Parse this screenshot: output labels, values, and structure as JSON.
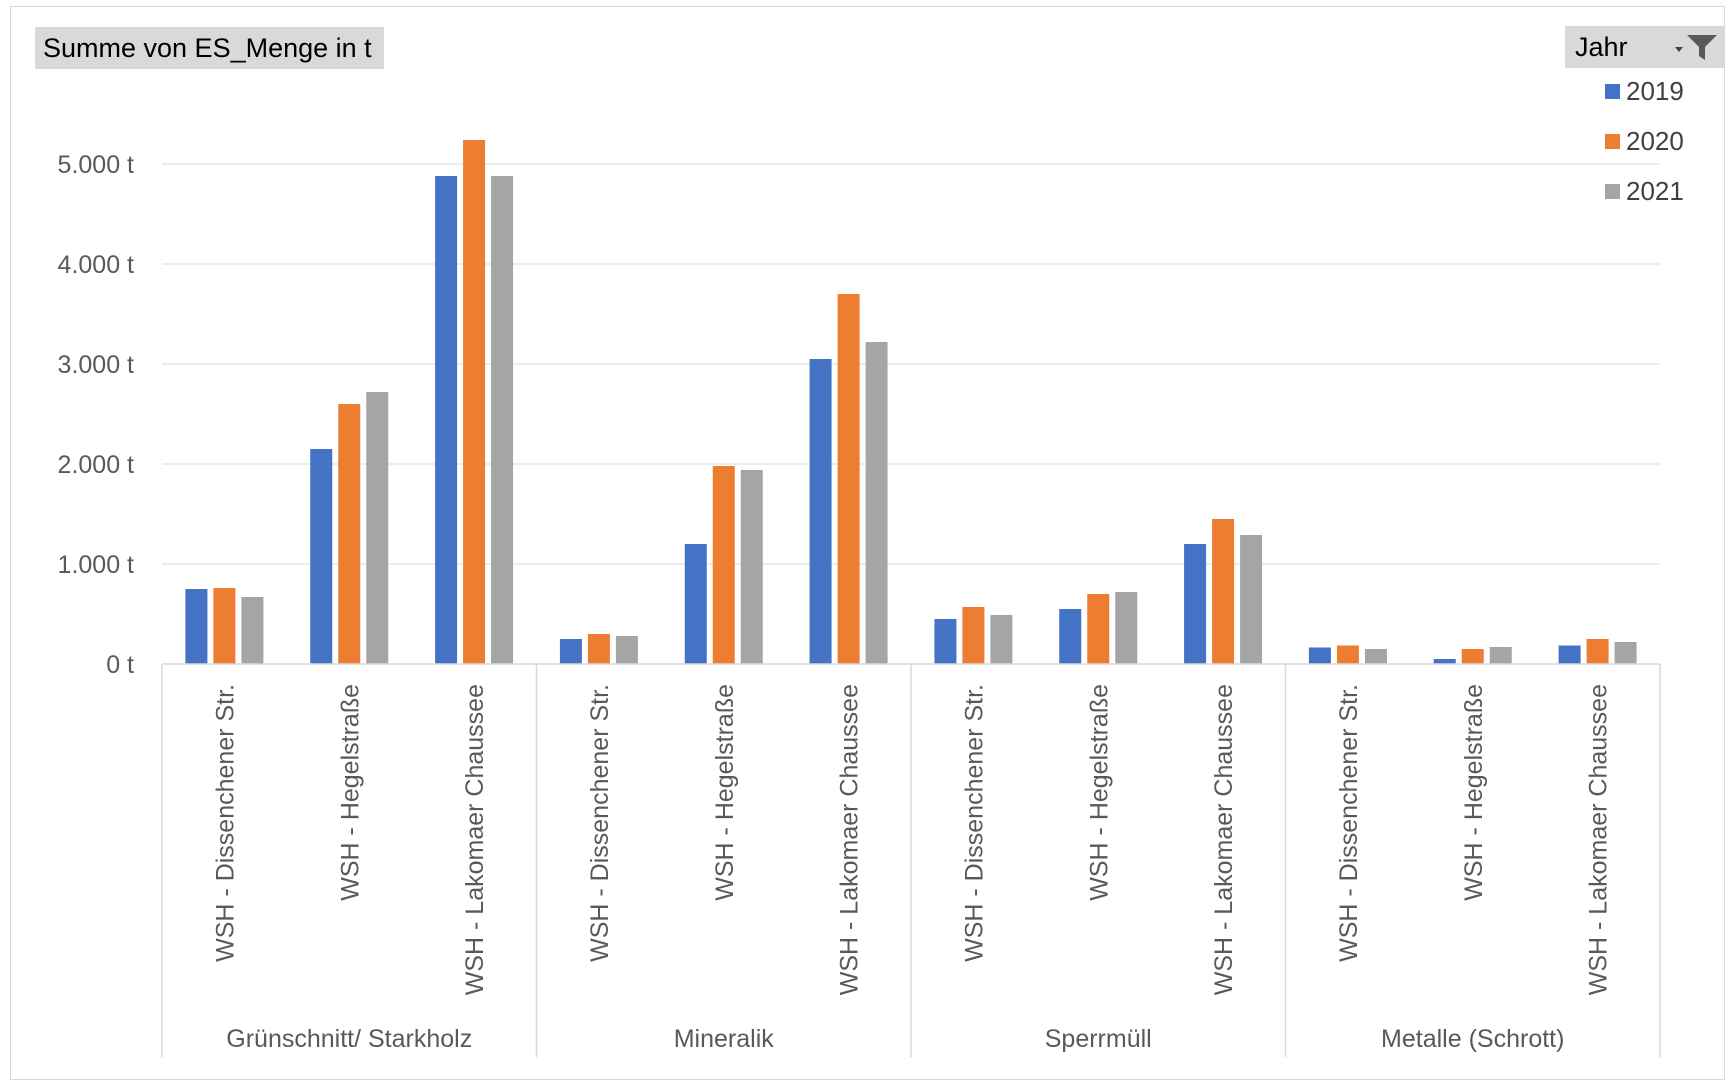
{
  "value_field": {
    "label": "Summe von ES_Menge in t"
  },
  "series_field": {
    "label": "Jahr",
    "icon": "filter-dropdown-icon"
  },
  "chart_data": {
    "type": "bar",
    "title": "",
    "xlabel": "",
    "ylabel": "",
    "ylim": [
      0,
      5000
    ],
    "y_ticks": [
      0,
      1000,
      2000,
      3000,
      4000,
      5000
    ],
    "y_tick_labels": [
      "0 t",
      "1.000 t",
      "2.000 t",
      "3.000 t",
      "4.000 t",
      "5.000 t"
    ],
    "grid": true,
    "legend_position": "top-right",
    "groups": [
      {
        "name": "Grünschnitt/ Starkholz",
        "categories": [
          "WSH - Dissenchener Str.",
          "WSH - Hegelstraße",
          "WSH - Lakomaer Chaussee"
        ]
      },
      {
        "name": "Mineralik",
        "categories": [
          "WSH - Dissenchener Str.",
          "WSH - Hegelstraße",
          "WSH - Lakomaer Chaussee"
        ]
      },
      {
        "name": "Sperrmüll",
        "categories": [
          "WSH - Dissenchener Str.",
          "WSH - Hegelstraße",
          "WSH - Lakomaer Chaussee"
        ]
      },
      {
        "name": "Metalle (Schrott)",
        "categories": [
          "WSH - Dissenchener Str.",
          "WSH - Hegelstraße",
          "WSH - Lakomaer Chaussee"
        ]
      }
    ],
    "series": [
      {
        "name": "2019",
        "color": "#4472c4",
        "values": [
          750,
          2150,
          4880,
          250,
          1200,
          3050,
          450,
          550,
          1200,
          165,
          50,
          185
        ]
      },
      {
        "name": "2020",
        "color": "#ed7d31",
        "values": [
          760,
          2600,
          5240,
          300,
          1980,
          3700,
          570,
          700,
          1450,
          185,
          150,
          250
        ]
      },
      {
        "name": "2021",
        "color": "#a5a5a5",
        "values": [
          670,
          2720,
          4880,
          280,
          1940,
          3220,
          490,
          720,
          1290,
          150,
          170,
          220
        ]
      }
    ]
  }
}
